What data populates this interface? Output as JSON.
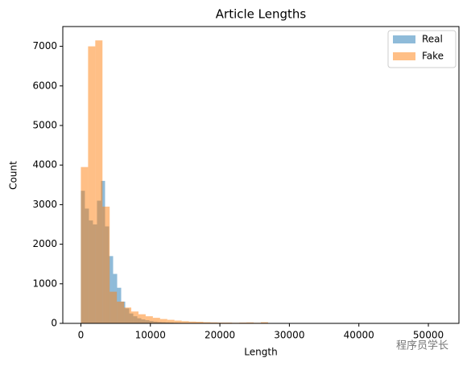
{
  "chart_data": {
    "type": "histogram",
    "title": "Article Lengths",
    "x_label": "Length",
    "y_label": "Count",
    "xlim": [
      -2600,
      54400
    ],
    "ylim": [
      0,
      7500
    ],
    "xticks": [
      0,
      10000,
      20000,
      30000,
      40000,
      50000
    ],
    "yticks": [
      0,
      1000,
      2000,
      3000,
      4000,
      5000,
      6000,
      7000
    ],
    "legend": "upper right",
    "opacity": 0.5,
    "series": [
      {
        "name": "Real",
        "color": "#1f77b4",
        "bins": [
          0,
          580,
          1160,
          1740,
          2320,
          2900,
          3480,
          4060,
          4640,
          5220,
          5800,
          6380,
          6960,
          7540,
          8120,
          8700,
          9280,
          9860,
          10440,
          11020,
          11600,
          12180,
          12760,
          13340,
          13920,
          14500,
          15080,
          15660,
          16240,
          16820,
          17400,
          17980,
          18560,
          19140,
          19720,
          20300,
          20880,
          21460,
          22040,
          22620,
          23200,
          23780,
          24360,
          24940,
          25520,
          26100,
          26680,
          27260,
          27840,
          28420,
          29000
        ],
        "values": [
          3350,
          2900,
          2600,
          2500,
          3100,
          3600,
          2450,
          1700,
          1250,
          900,
          550,
          380,
          250,
          180,
          130,
          100,
          80,
          60,
          45,
          35,
          30,
          25,
          20,
          15,
          12,
          10,
          8,
          6,
          5,
          4,
          3,
          3,
          2,
          2,
          2,
          1,
          1,
          1,
          1,
          1,
          1,
          0,
          0,
          0,
          0,
          0,
          0,
          0,
          0,
          2
        ]
      },
      {
        "name": "Fake",
        "color": "#ff7f0e",
        "bins": [
          0,
          1036,
          2072,
          3108,
          4144,
          5180,
          6216,
          7252,
          8288,
          9324,
          10360,
          11396,
          12432,
          13468,
          14504,
          15540,
          16576,
          17612,
          18648,
          19684,
          20720,
          21756,
          22792,
          23828,
          24864,
          25900,
          26936,
          27972,
          29008,
          30044,
          31080,
          32116,
          33152,
          34188,
          35224,
          36260,
          37296,
          38332,
          39368,
          40404,
          41440,
          42476,
          43512,
          44548,
          45584,
          46620,
          47656,
          48692,
          49728,
          50764,
          51800
        ],
        "values": [
          3950,
          7000,
          7150,
          2950,
          800,
          550,
          400,
          300,
          230,
          180,
          140,
          110,
          90,
          70,
          55,
          45,
          40,
          30,
          25,
          20,
          20,
          15,
          20,
          25,
          15,
          30,
          10,
          8,
          5,
          3,
          2,
          2,
          1,
          1,
          1,
          0,
          0,
          0,
          0,
          0,
          0,
          0,
          0,
          0,
          0,
          0,
          0,
          0,
          0,
          3
        ]
      }
    ],
    "watermark": "程序员学长"
  }
}
